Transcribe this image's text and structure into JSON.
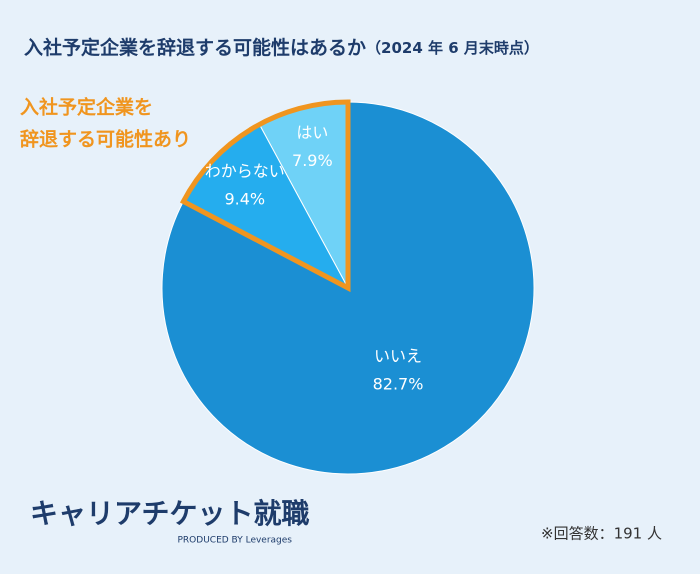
{
  "chart_data": {
    "type": "pie",
    "title": "入社予定企業を辞退する可能性はあるか",
    "subtitle": "（2024 年 6 月末時点）",
    "categories": [
      "はい",
      "わからない",
      "いいえ"
    ],
    "values": [
      7.9,
      9.4,
      82.7
    ],
    "value_labels": [
      "7.9%",
      "9.4%",
      "82.7%"
    ],
    "colors": [
      "#6fd2f7",
      "#25adee",
      "#1b8fd3"
    ],
    "highlight_color": "#f0951f",
    "annotation": [
      "入社予定企業を",
      "辞退する可能性あり"
    ],
    "note": "※回答数：191 人"
  },
  "logo": {
    "name": "キャリアチケット就職",
    "tagline": "PRODUCED BY Leverages"
  }
}
